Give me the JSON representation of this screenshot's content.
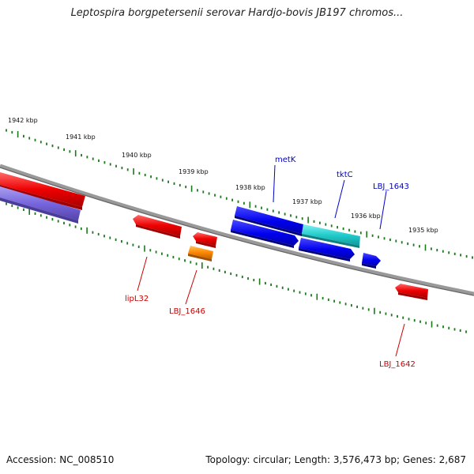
{
  "title": "Leptospira borgpetersenii serovar Hardjo-bovis JB197 chromos...",
  "footer": {
    "accession": "Accession: NC_008510",
    "topology": "Topology: circular; Length: 3,576,473 bp; Genes: 2,687"
  },
  "colors": {
    "backbone": "#888888",
    "tick": "#1a7a1a",
    "plus_label": "#0000cc",
    "minus_label": "#cc0000",
    "blue_gene": "#0000ee",
    "cyan_gene": "#22cccc",
    "red_gene": "#ee0000",
    "orange_gene": "#ff8800",
    "purple_gene": "#7766dd"
  },
  "kbp_labels": [
    "1942 kbp",
    "1941 kbp",
    "1940 kbp",
    "1939 kbp",
    "1938 kbp",
    "1937 kbp",
    "1936 kbp",
    "1935 kbp"
  ],
  "genes": [
    {
      "name": "metK",
      "strand": "+",
      "color": "blue"
    },
    {
      "name": "tktC",
      "strand": "+",
      "color": "cyan"
    },
    {
      "name": "LBJ_1643",
      "strand": "+",
      "color": "blue"
    },
    {
      "name": "lipL32",
      "strand": "-",
      "color": "red"
    },
    {
      "name": "LBJ_1646",
      "strand": "-",
      "color": "orange"
    },
    {
      "name": "LBJ_1642",
      "strand": "-",
      "color": "red"
    }
  ]
}
